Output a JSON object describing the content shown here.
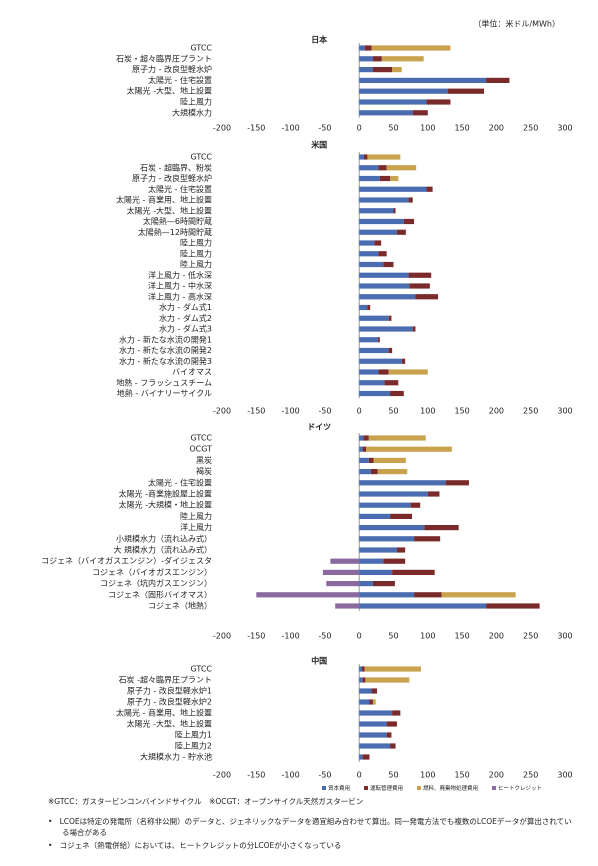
{
  "unit": "（単位：米ドル/MWh）",
  "notes": [
    "※GTCC：ガスタービンコンバインドサイクル　※OCGT：オープンサイクル天然ガスタービン",
    "LCOEは特定の発電所（名称非公開）のデータと、ジェネリックなデータを適宜組み合わせて算出。同一発電方法でも複数のLCOEデータが算出されている場合がある",
    "コジェネ（熱電併給）においては、ヒートクレジットの分LCOEが小さくなっている"
  ],
  "chart_data": [
    {
      "type": "bar",
      "title": "日本",
      "categories": [
        "GTCC",
        "石炭・超々臨界圧プラント",
        "原子力 - 改良型軽水炉",
        "太陽光 - 住宅設置",
        "太陽光 -大型、地上設置",
        "陸上風力",
        "大規模水力"
      ],
      "series": [
        {
          "color": "#4a6cb0",
          "values": [
            8,
            20,
            20,
            185,
            129,
            98,
            78
          ]
        },
        {
          "color": "#7a2a2a",
          "values": [
            10,
            13,
            28,
            34,
            53,
            35,
            22
          ]
        },
        {
          "color": "#c9a24e",
          "values": [
            115,
            61,
            14,
            0,
            0,
            0,
            0
          ]
        }
      ],
      "xlim": [
        -200,
        300
      ],
      "xticks": [
        -200,
        -150,
        -100,
        -50,
        0,
        50,
        100,
        150,
        200,
        250,
        300
      ]
    },
    {
      "type": "bar",
      "title": "米国",
      "categories": [
        "GTCC",
        "石炭 - 超臨界、粉炭",
        "原子力 - 改良型軽水炉",
        "太陽光 - 住宅設置",
        "太陽光 - 商業用、地上設置",
        "太陽光 -大型、地上設置",
        "太陽熱—6時間貯蔵",
        "太陽熱—12時間貯蔵",
        "陸上風力",
        "陸上風力",
        "陸上風力",
        "洋上風力 - 低水深",
        "洋上風力 - 中水深",
        "洋上風力 - 高水深",
        "水力 - ダム式1",
        "水力 - ダム式2",
        "水力 - ダム式3",
        "水力 - 新たな水流の開発1",
        "水力 - 新たな水流の開発2",
        "水力 - 新たな水流の開発3",
        "バイオマス",
        "地熱 - フラッシュスチーム",
        "地熱 - バイナリーサイクル"
      ],
      "series": [
        {
          "color": "#4a6cb0",
          "values": [
            7,
            28,
            30,
            98,
            72,
            50,
            65,
            55,
            22,
            28,
            35,
            72,
            73,
            82,
            12,
            43,
            78,
            27,
            43,
            62,
            28,
            37,
            45
          ]
        },
        {
          "color": "#7a2a2a",
          "values": [
            5,
            12,
            15,
            9,
            6,
            3,
            15,
            13,
            10,
            12,
            15,
            33,
            30,
            33,
            4,
            4,
            4,
            3,
            5,
            5,
            15,
            20,
            20
          ]
        },
        {
          "color": "#c9a24e",
          "values": [
            48,
            43,
            12,
            0,
            0,
            0,
            0,
            0,
            0,
            0,
            0,
            0,
            0,
            0,
            0,
            0,
            0,
            0,
            0,
            0,
            57,
            0,
            0
          ]
        }
      ],
      "xlim": [
        -200,
        300
      ],
      "xticks": [
        -200,
        -150,
        -100,
        -50,
        0,
        50,
        100,
        150,
        200,
        250,
        300
      ]
    },
    {
      "type": "bar",
      "title": "ドイツ",
      "categories": [
        "GTCC",
        "OCGT",
        "黒炭",
        "褐炭",
        "太陽光 - 住宅設置",
        "太陽光 -商業施設屋上設置",
        "太陽光 -大規模・地上設置",
        "陸上風力",
        "洋上風力",
        "小規模水力（流れ込み式）",
        "大 規模水力（流れ込み式）",
        "コジェネ（バイオガスエンジン）-ダイジェスタ",
        "コジェネ（バイオガスエンジン）",
        "コジェネ（坑内ガスエンジン）",
        "コジェネ（固形バイオマス）",
        "コジェネ（地熱）"
      ],
      "series": [
        {
          "name": "資本費用",
          "color": "#4a6cb0",
          "values": [
            6,
            5,
            14,
            17,
            126,
            100,
            75,
            45,
            95,
            80,
            55,
            35,
            48,
            20,
            80,
            185
          ]
        },
        {
          "name": "運転管理費用",
          "color": "#7a2a2a",
          "values": [
            8,
            5,
            7,
            10,
            34,
            17,
            14,
            32,
            50,
            38,
            12,
            32,
            62,
            32,
            40,
            78
          ]
        },
        {
          "name": "燃料、廃棄物処理費用",
          "color": "#c9a24e",
          "values": [
            83,
            125,
            47,
            43,
            0,
            0,
            0,
            0,
            0,
            0,
            0,
            0,
            0,
            0,
            108,
            0
          ]
        },
        {
          "name": "ヒートクレジット",
          "color": "#8a6a9e",
          "values": [
            0,
            0,
            0,
            0,
            0,
            0,
            0,
            0,
            0,
            0,
            0,
            -42,
            -53,
            -48,
            -150,
            -35
          ]
        }
      ],
      "xlim": [
        -200,
        300
      ],
      "xticks": [
        -200,
        -150,
        -100,
        -50,
        0,
        50,
        100,
        150,
        200,
        250,
        300
      ]
    },
    {
      "type": "bar",
      "title": "中国",
      "categories": [
        "GTCC",
        "石炭 -超々臨界圧プラント",
        "原子力 - 改良型軽水炉1",
        "原子力 - 改良型軽水炉2",
        "太陽光 - 商業用、地上設置",
        "太陽光 -大型、地上設置",
        "陸上風力1",
        "陸上風力2",
        "大規模水力 - 貯水池"
      ],
      "series": [
        {
          "color": "#4a6cb0",
          "values": [
            4,
            5,
            18,
            15,
            48,
            40,
            40,
            45,
            5
          ]
        },
        {
          "color": "#7a2a2a",
          "values": [
            4,
            4,
            8,
            5,
            12,
            15,
            7,
            8,
            10
          ]
        },
        {
          "color": "#c9a24e",
          "values": [
            82,
            64,
            0,
            4,
            0,
            0,
            0,
            0,
            0
          ]
        }
      ],
      "xlim": [
        -200,
        300
      ],
      "xticks": [
        -200,
        -150,
        -100,
        -50,
        0,
        50,
        100,
        150,
        200,
        250,
        300
      ]
    }
  ]
}
